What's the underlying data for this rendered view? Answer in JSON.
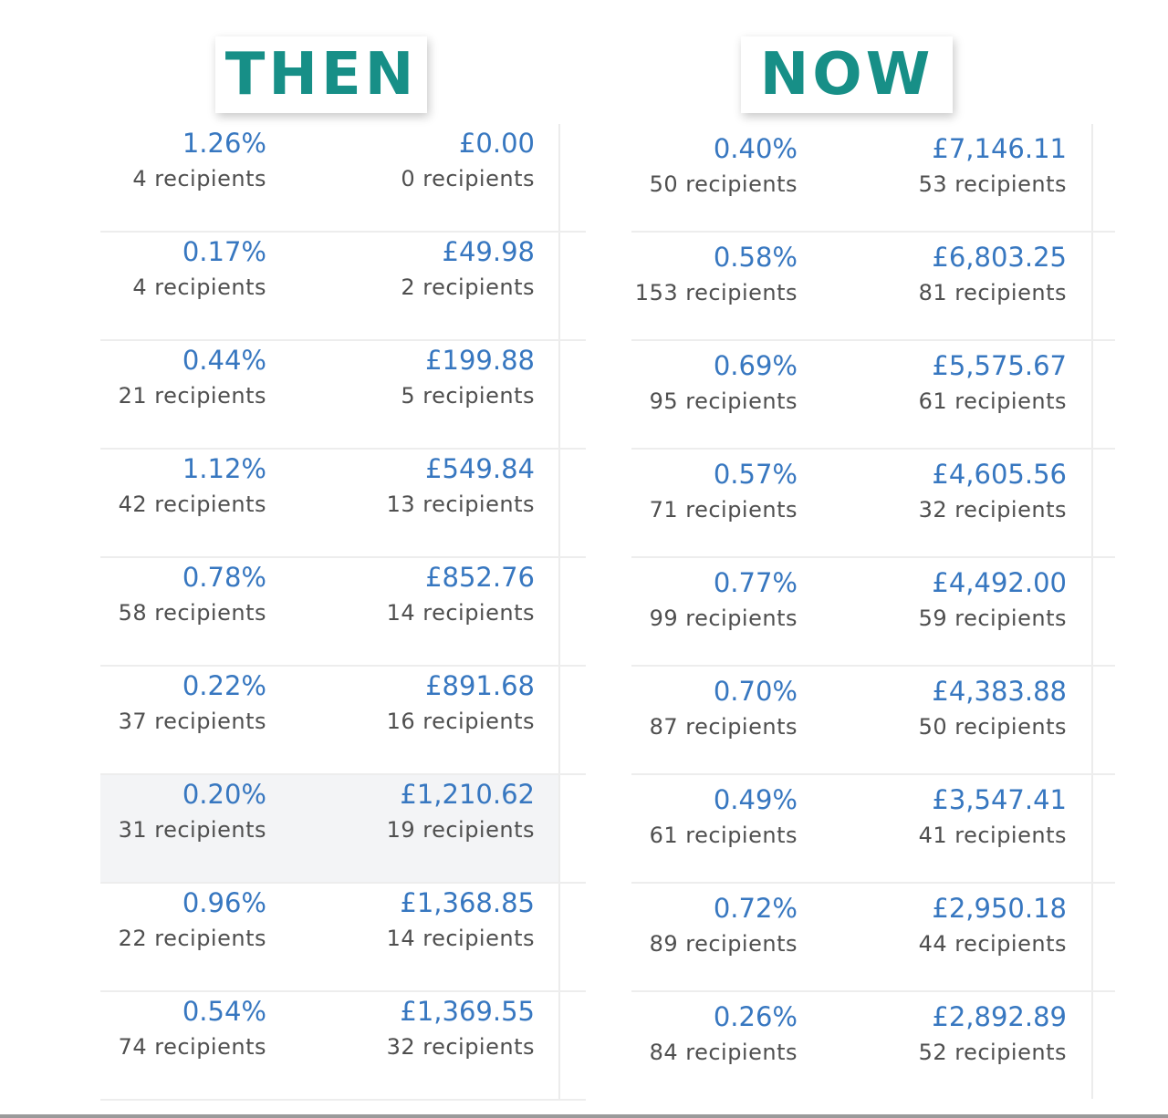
{
  "labels": {
    "then": "THEN",
    "now": "NOW"
  },
  "colors": {
    "label_teal": "#178f87",
    "link_blue": "#3777c0",
    "text_gray": "#4f4f4f"
  },
  "then_rows": [
    {
      "rate": "1.26%",
      "rate_recipients": "4 recipients",
      "revenue": "£0.00",
      "revenue_recipients": "0 recipients"
    },
    {
      "rate": "0.17%",
      "rate_recipients": "4 recipients",
      "revenue": "£49.98",
      "revenue_recipients": "2 recipients"
    },
    {
      "rate": "0.44%",
      "rate_recipients": "21 recipients",
      "revenue": "£199.88",
      "revenue_recipients": "5 recipients"
    },
    {
      "rate": "1.12%",
      "rate_recipients": "42 recipients",
      "revenue": "£549.84",
      "revenue_recipients": "13 recipients"
    },
    {
      "rate": "0.78%",
      "rate_recipients": "58 recipients",
      "revenue": "£852.76",
      "revenue_recipients": "14 recipients"
    },
    {
      "rate": "0.22%",
      "rate_recipients": "37 recipients",
      "revenue": "£891.68",
      "revenue_recipients": "16 recipients"
    },
    {
      "rate": "0.20%",
      "rate_recipients": "31 recipients",
      "revenue": "£1,210.62",
      "revenue_recipients": "19 recipients",
      "highlighted": true
    },
    {
      "rate": "0.96%",
      "rate_recipients": "22 recipients",
      "revenue": "£1,368.85",
      "revenue_recipients": "14 recipients"
    },
    {
      "rate": "0.54%",
      "rate_recipients": "74 recipients",
      "revenue": "£1,369.55",
      "revenue_recipients": "32 recipients"
    }
  ],
  "now_rows": [
    {
      "rate": "0.40%",
      "rate_recipients": "50 recipients",
      "revenue": "£7,146.11",
      "revenue_recipients": "53 recipients"
    },
    {
      "rate": "0.58%",
      "rate_recipients": "153 recipients",
      "revenue": "£6,803.25",
      "revenue_recipients": "81 recipients"
    },
    {
      "rate": "0.69%",
      "rate_recipients": "95 recipients",
      "revenue": "£5,575.67",
      "revenue_recipients": "61 recipients"
    },
    {
      "rate": "0.57%",
      "rate_recipients": "71 recipients",
      "revenue": "£4,605.56",
      "revenue_recipients": "32 recipients"
    },
    {
      "rate": "0.77%",
      "rate_recipients": "99 recipients",
      "revenue": "£4,492.00",
      "revenue_recipients": "59 recipients"
    },
    {
      "rate": "0.70%",
      "rate_recipients": "87 recipients",
      "revenue": "£4,383.88",
      "revenue_recipients": "50 recipients"
    },
    {
      "rate": "0.49%",
      "rate_recipients": "61 recipients",
      "revenue": "£3,547.41",
      "revenue_recipients": "41 recipients"
    },
    {
      "rate": "0.72%",
      "rate_recipients": "89 recipients",
      "revenue": "£2,950.18",
      "revenue_recipients": "44 recipients"
    },
    {
      "rate": "0.26%",
      "rate_recipients": "84 recipients",
      "revenue": "£2,892.89",
      "revenue_recipients": "52 recipients"
    }
  ]
}
